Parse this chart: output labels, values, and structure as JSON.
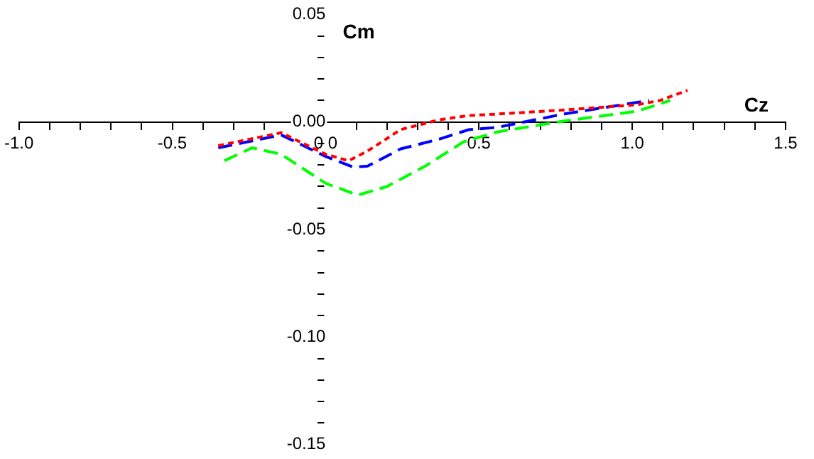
{
  "chart_data": {
    "type": "line",
    "xlabel": "Cz",
    "ylabel": "Cm",
    "xlim": [
      -1.0,
      1.5
    ],
    "ylim": [
      -0.15,
      0.05
    ],
    "xticks": [
      {
        "value": -1.0,
        "label": "-1.0"
      },
      {
        "value": -0.9,
        "label": null
      },
      {
        "value": -0.8,
        "label": null
      },
      {
        "value": -0.7,
        "label": null
      },
      {
        "value": -0.6,
        "label": null
      },
      {
        "value": -0.5,
        "label": "-0.5"
      },
      {
        "value": -0.4,
        "label": null
      },
      {
        "value": -0.3,
        "label": null
      },
      {
        "value": -0.2,
        "label": null
      },
      {
        "value": -0.1,
        "label": null
      },
      {
        "value": 0,
        "label": "0.0"
      },
      {
        "value": 0.1,
        "label": null
      },
      {
        "value": 0.2,
        "label": null
      },
      {
        "value": 0.3,
        "label": null
      },
      {
        "value": 0.4,
        "label": null
      },
      {
        "value": 0.5,
        "label": "0.5"
      },
      {
        "value": 0.6,
        "label": null
      },
      {
        "value": 0.7,
        "label": null
      },
      {
        "value": 0.8,
        "label": null
      },
      {
        "value": 0.9,
        "label": null
      },
      {
        "value": 1.0,
        "label": "1.0"
      },
      {
        "value": 1.1,
        "label": null
      },
      {
        "value": 1.2,
        "label": null
      },
      {
        "value": 1.3,
        "label": null
      },
      {
        "value": 1.4,
        "label": null
      },
      {
        "value": 1.5,
        "label": "1.5"
      }
    ],
    "yticks": [
      {
        "value": -0.15,
        "label": "-0.15"
      },
      {
        "value": -0.14,
        "label": null
      },
      {
        "value": -0.13,
        "label": null
      },
      {
        "value": -0.12,
        "label": null
      },
      {
        "value": -0.11,
        "label": null
      },
      {
        "value": -0.1,
        "label": "-0.10"
      },
      {
        "value": -0.09,
        "label": null
      },
      {
        "value": -0.08,
        "label": null
      },
      {
        "value": -0.07,
        "label": null
      },
      {
        "value": -0.06,
        "label": null
      },
      {
        "value": -0.05,
        "label": "-0.05"
      },
      {
        "value": -0.04,
        "label": null
      },
      {
        "value": -0.03,
        "label": null
      },
      {
        "value": -0.02,
        "label": null
      },
      {
        "value": -0.01,
        "label": null
      },
      {
        "value": 0,
        "label": "0.00"
      },
      {
        "value": 0.01,
        "label": null
      },
      {
        "value": 0.02,
        "label": null
      },
      {
        "value": 0.03,
        "label": null
      },
      {
        "value": 0.04,
        "label": null
      },
      {
        "value": 0.05,
        "label": "0.05"
      }
    ],
    "grid": false,
    "legend": false,
    "marker": "none",
    "series": [
      {
        "color": "#ff0000",
        "line_style": "dotted",
        "x": [
          -0.35,
          -0.145,
          0.0,
          0.075,
          0.137,
          0.245,
          0.37,
          0.466,
          0.56,
          0.78,
          1.015,
          1.09,
          1.18
        ],
        "values": [
          -0.011,
          -0.005,
          -0.015,
          -0.018,
          -0.0135,
          -0.0035,
          0.001,
          0.003,
          0.0037,
          0.0056,
          0.008,
          0.01,
          0.0147
        ]
      },
      {
        "color": "#0000ff",
        "line_style": "dashed",
        "x": [
          -0.35,
          -0.145,
          0.0,
          0.09,
          0.137,
          0.245,
          0.37,
          0.466,
          0.56,
          0.78,
          1.055
        ],
        "values": [
          -0.012,
          -0.006,
          -0.016,
          -0.021,
          -0.0205,
          -0.0125,
          -0.008,
          -0.0036,
          -0.0025,
          0.0038,
          0.01
        ]
      },
      {
        "color": "#00ff00",
        "line_style": "dashed",
        "x": [
          -0.33,
          -0.24,
          -0.145,
          0.0,
          0.105,
          0.2,
          0.325,
          0.45,
          0.56,
          0.78,
          1.015,
          1.124
        ],
        "values": [
          -0.018,
          -0.012,
          -0.015,
          -0.0285,
          -0.034,
          -0.03,
          -0.0205,
          -0.0092,
          -0.0046,
          0.0005,
          0.005,
          0.01
        ]
      }
    ]
  }
}
